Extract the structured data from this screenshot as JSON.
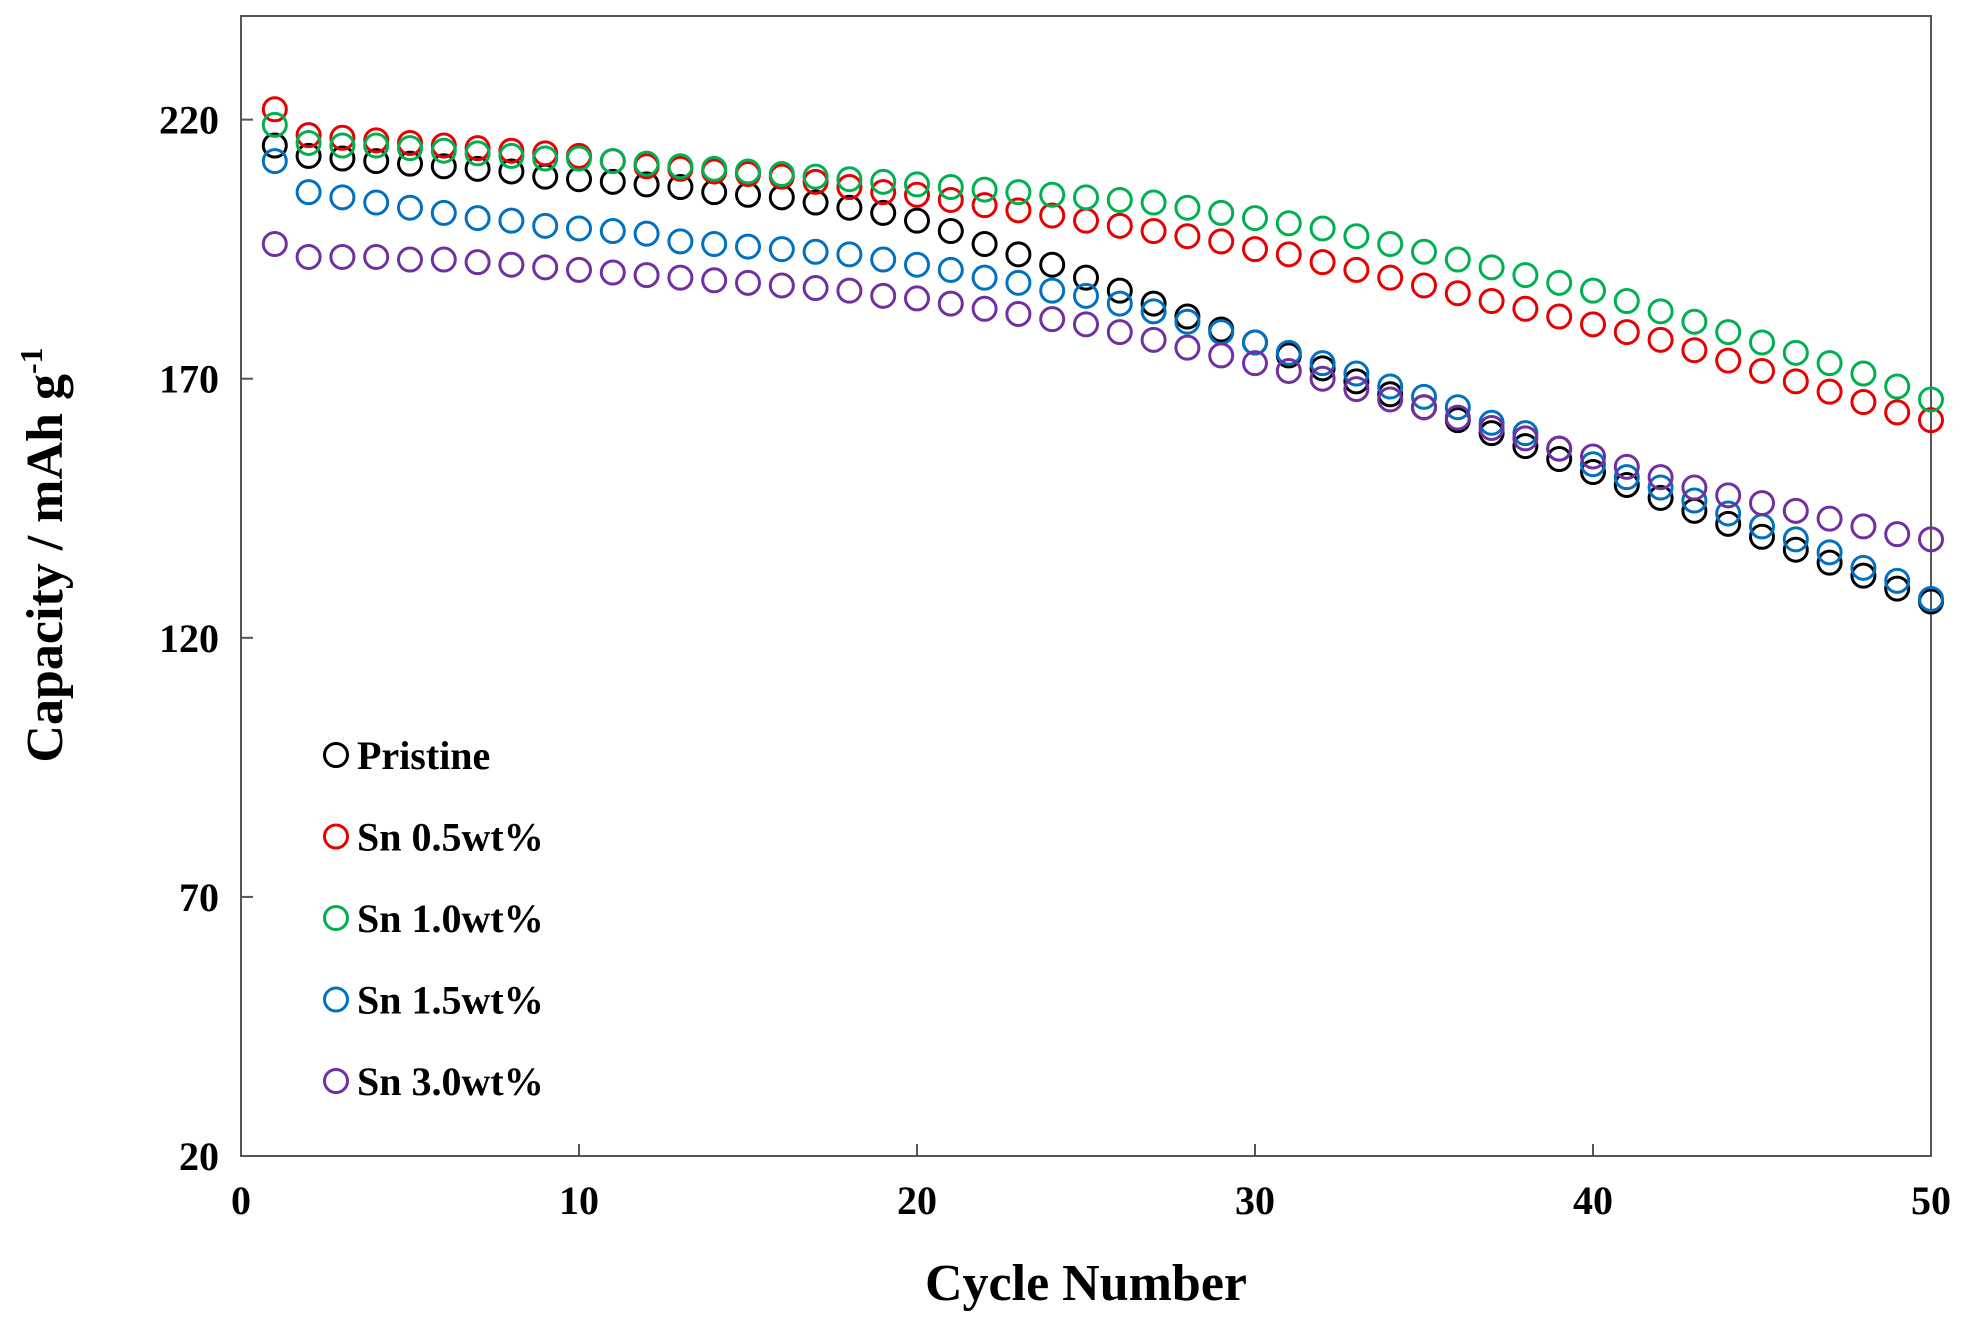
{
  "chart_data": {
    "type": "scatter",
    "title": "",
    "xlabel": "Cycle Number",
    "ylabel": "Capacity / mAh g",
    "ylabel_superscript": "-1",
    "xlim": [
      0,
      50
    ],
    "ylim": [
      20,
      240
    ],
    "xticks": [
      0,
      10,
      20,
      30,
      40,
      50
    ],
    "yticks": [
      20,
      70,
      120,
      170,
      220
    ],
    "grid": false,
    "legend_position": "lower-left",
    "x": [
      1,
      2,
      3,
      4,
      5,
      6,
      7,
      8,
      9,
      10,
      11,
      12,
      13,
      14,
      15,
      16,
      17,
      18,
      19,
      20,
      21,
      22,
      23,
      24,
      25,
      26,
      27,
      28,
      29,
      30,
      31,
      32,
      33,
      34,
      35,
      36,
      37,
      38,
      39,
      40,
      41,
      42,
      43,
      44,
      45,
      46,
      47,
      48,
      49,
      50
    ],
    "series": [
      {
        "name": "Pristine",
        "color": "#000000",
        "values": [
          215,
          213,
          212.5,
          212,
          211.5,
          211,
          210.5,
          210,
          209,
          208.5,
          208,
          207.5,
          207,
          206,
          205.5,
          205,
          204,
          203,
          202,
          200.5,
          198.5,
          196,
          194,
          192,
          189.5,
          187,
          184.5,
          182,
          179.5,
          177,
          174.5,
          172,
          169.5,
          167,
          164.5,
          162,
          159.5,
          157,
          154.5,
          152,
          149.5,
          147,
          144.5,
          142,
          139.5,
          137,
          134.5,
          132,
          129.5,
          127
        ]
      },
      {
        "name": "Sn 0.5wt%",
        "color": "#e60000",
        "values": [
          222,
          217,
          216.5,
          216,
          215.5,
          215,
          214.5,
          214,
          213.5,
          213,
          212,
          211,
          210.5,
          210,
          209.5,
          209,
          208,
          207,
          206,
          205.5,
          204.5,
          203.5,
          202.5,
          201.5,
          200.5,
          199.5,
          198.5,
          197.5,
          196.5,
          195,
          194,
          192.5,
          191,
          189.5,
          188,
          186.5,
          185,
          183.5,
          182,
          180.5,
          179,
          177.5,
          175.5,
          173.5,
          171.5,
          169.5,
          167.5,
          165.5,
          163.5,
          162
        ]
      },
      {
        "name": "Sn 1.0wt%",
        "color": "#00b050",
        "values": [
          219,
          215.5,
          215,
          215,
          214.5,
          214,
          213.5,
          213,
          212.5,
          212.5,
          212,
          211.5,
          211,
          210.5,
          210,
          209.5,
          209,
          208.5,
          208,
          207.5,
          207,
          206.5,
          206,
          205.5,
          205,
          204.5,
          204,
          203,
          202,
          201,
          200,
          199,
          197.5,
          196,
          194.5,
          193,
          191.5,
          190,
          188.5,
          187,
          185,
          183,
          181,
          179,
          177,
          175,
          173,
          171,
          168.5,
          166
        ]
      },
      {
        "name": "Sn 1.5wt%",
        "color": "#0070c0",
        "values": [
          212,
          206,
          205,
          204,
          203,
          202,
          201,
          200.5,
          199.5,
          199,
          198.5,
          198,
          196.5,
          196,
          195.5,
          195,
          194.5,
          194,
          193,
          192,
          191,
          189.5,
          188.5,
          187,
          186,
          184.5,
          183,
          181,
          179,
          177,
          175,
          173,
          171,
          168.5,
          166.5,
          164.5,
          161.5,
          159.5,
          156.5,
          153.5,
          151,
          149,
          146.5,
          144,
          141.5,
          139,
          136.5,
          133.5,
          131,
          127.5
        ]
      },
      {
        "name": "Sn 3.0wt%",
        "color": "#7030a0",
        "values": [
          196,
          193.5,
          193.5,
          193.5,
          193,
          193,
          192.5,
          192,
          191.5,
          191,
          190.5,
          190,
          189.5,
          189,
          188.5,
          188,
          187.5,
          187,
          186,
          185.5,
          184.5,
          183.5,
          182.5,
          181.5,
          180.5,
          179,
          177.5,
          176,
          174.5,
          173,
          171.5,
          170,
          168,
          166,
          164.5,
          162.5,
          160.5,
          158.5,
          156.5,
          155,
          153,
          151,
          149,
          147.5,
          146,
          144.5,
          143,
          141.5,
          140,
          139
        ]
      }
    ]
  }
}
